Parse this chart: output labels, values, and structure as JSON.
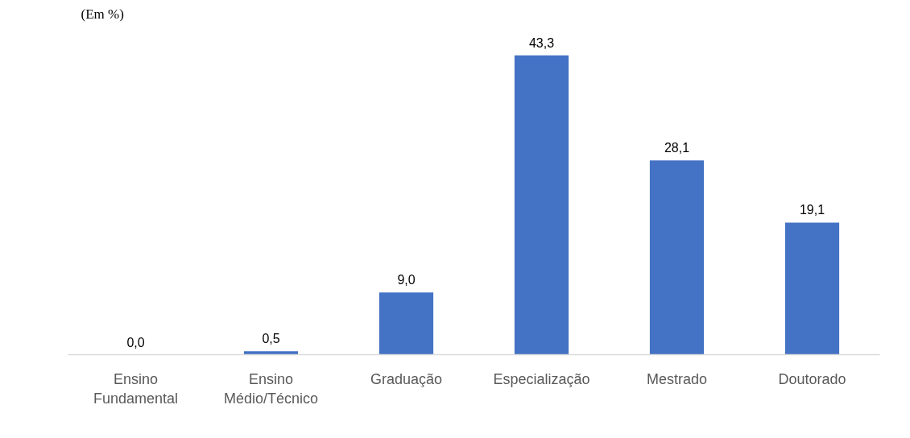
{
  "chart_data": {
    "type": "bar",
    "subtitle": "(Em %)",
    "categories": [
      "Ensino\nFundamental",
      "Ensino\nMédio/Técnico",
      "Graduação",
      "Especialização",
      "Mestrado",
      "Doutorado"
    ],
    "values": [
      0.0,
      0.5,
      9.0,
      43.3,
      28.1,
      19.1
    ],
    "value_labels": [
      "0,0",
      "0,5",
      "9,0",
      "43,3",
      "28,1",
      "19,1"
    ],
    "color": "#4472c4",
    "grid": false,
    "tick_labels": "x"
  }
}
